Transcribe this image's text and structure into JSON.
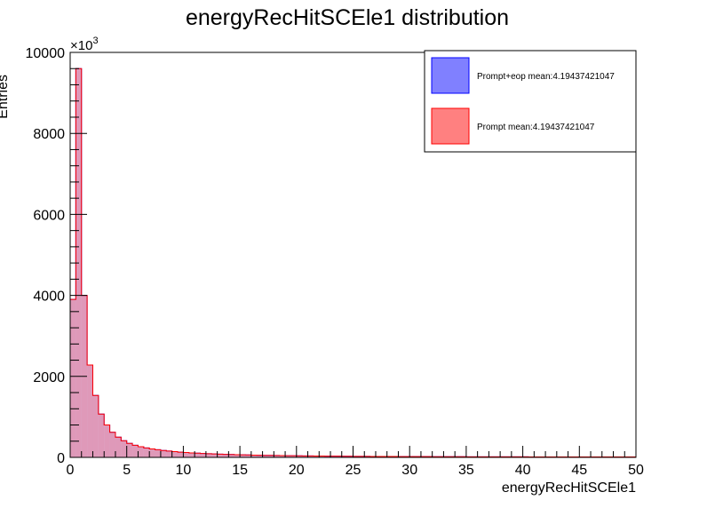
{
  "chart_data": {
    "type": "bar",
    "title": "energyRecHitSCEle1 distribution",
    "xlabel": "energyRecHitSCEle1",
    "ylabel": "Entries",
    "y_multiplier_label": "×10",
    "y_multiplier_exponent": "3",
    "xlim": [
      0,
      50
    ],
    "ylim": [
      0,
      10000
    ],
    "bin_width": 0.5,
    "x_ticks": [
      "0",
      "5",
      "10",
      "15",
      "20",
      "25",
      "30",
      "35",
      "40",
      "45",
      "50"
    ],
    "y_ticks": [
      "0",
      "2000",
      "4000",
      "6000",
      "8000",
      "10000"
    ],
    "legend_position": "top-right",
    "series": [
      {
        "name": "Prompt+eop mean:4.19437421047",
        "color": "#8080ff",
        "edge_color": "#0000ff",
        "values": [
          3900,
          9600,
          4000,
          2280,
          1530,
          1070,
          800,
          620,
          500,
          410,
          345,
          300,
          262,
          232,
          208,
          188,
          170,
          155,
          142,
          130,
          120,
          111,
          103,
          96,
          90,
          84,
          79,
          74,
          70,
          66,
          62,
          59,
          56,
          53,
          50,
          48,
          46,
          44,
          42,
          40,
          38,
          36,
          35,
          33,
          32,
          31,
          30,
          29,
          28,
          27,
          26,
          25,
          24,
          23,
          23,
          22,
          21,
          21,
          20,
          20,
          19,
          19,
          18,
          18,
          17,
          17,
          17,
          16,
          16,
          16,
          15,
          15,
          15,
          14,
          14,
          14,
          14,
          13,
          13,
          13,
          13,
          12,
          12,
          12,
          12,
          12,
          11,
          11,
          11,
          11,
          11,
          11,
          10,
          10,
          10,
          10,
          10,
          10,
          10,
          10
        ]
      },
      {
        "name": "Prompt mean:4.19437421047",
        "color": "#ff8080",
        "edge_color": "#ff0000",
        "values": [
          3900,
          9600,
          4000,
          2280,
          1530,
          1070,
          800,
          620,
          500,
          410,
          345,
          300,
          262,
          232,
          208,
          188,
          170,
          155,
          142,
          130,
          120,
          111,
          103,
          96,
          90,
          84,
          79,
          74,
          70,
          66,
          62,
          59,
          56,
          53,
          50,
          48,
          46,
          44,
          42,
          40,
          38,
          36,
          35,
          33,
          32,
          31,
          30,
          29,
          28,
          27,
          26,
          25,
          24,
          23,
          23,
          22,
          21,
          21,
          20,
          20,
          19,
          19,
          18,
          18,
          17,
          17,
          17,
          16,
          16,
          16,
          15,
          15,
          15,
          14,
          14,
          14,
          14,
          13,
          13,
          13,
          13,
          12,
          12,
          12,
          12,
          12,
          11,
          11,
          11,
          11,
          11,
          11,
          10,
          10,
          10,
          10,
          10,
          10,
          10,
          10
        ]
      }
    ]
  }
}
